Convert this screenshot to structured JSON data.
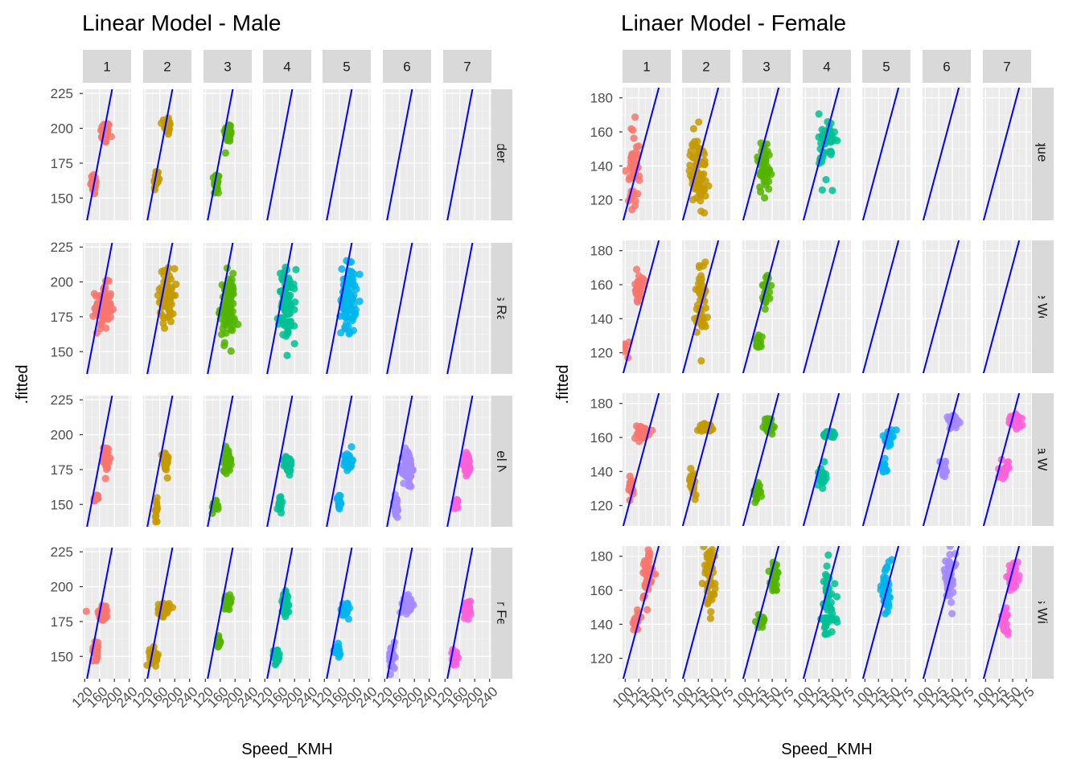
{
  "chart_data": [
    {
      "type": "scatter",
      "title": "Linear Model - Male",
      "xlabel": "Speed_KMH",
      "ylabel": ".fitted",
      "grid": "on",
      "legend": "none",
      "facet_columns": [
        "1",
        "2",
        "3",
        "4",
        "5",
        "6",
        "7"
      ],
      "facet_rows": [
        "Alexander Zverev",
        "Milos Raonic",
        "Rafael Nadal",
        "Roger Federer"
      ],
      "xlim": [
        115,
        245
      ],
      "ylim": [
        134,
        228
      ],
      "x_ticks": [
        120,
        160,
        200,
        240
      ],
      "x_tick_labels": [
        "120",
        "160",
        "200",
        "240"
      ],
      "y_ticks": [
        150,
        175,
        200,
        225
      ],
      "y_tick_labels": [
        "150",
        "175",
        "200",
        "225"
      ],
      "reference_line": {
        "intercept": -41.5,
        "slope": 1.39,
        "color": "#0000FF"
      },
      "series": [
        {
          "name": "1",
          "color": "#F8766D"
        },
        {
          "name": "2",
          "color": "#C49A00"
        },
        {
          "name": "3",
          "color": "#53B400"
        },
        {
          "name": "4",
          "color": "#00C094"
        },
        {
          "name": "5",
          "color": "#00B6EB"
        },
        {
          "name": "6",
          "color": "#A58AFF"
        },
        {
          "name": "7",
          "color": "#FB61D7"
        }
      ],
      "panels": [
        {
          "row": 0,
          "col": 0,
          "clusters": [
            [
              175,
              197,
              12,
              4,
              45
            ],
            [
              145,
              160,
              9,
              4,
              25
            ]
          ]
        },
        {
          "row": 0,
          "col": 1,
          "clusters": [
            [
              180,
              202,
              8,
              3.5,
              35
            ],
            [
              150,
              163,
              7,
              4,
              25
            ]
          ]
        },
        {
          "row": 0,
          "col": 2,
          "clusters": [
            [
              182,
              197,
              10,
              3.5,
              50
            ],
            [
              150,
              160,
              7,
              4.5,
              22
            ]
          ]
        },
        {
          "row": 1,
          "col": 0,
          "clusters": [
            [
              170,
              182,
              22,
              8,
              80
            ]
          ]
        },
        {
          "row": 1,
          "col": 1,
          "clusters": [
            [
              180,
              190,
              20,
              10,
              70
            ]
          ]
        },
        {
          "row": 1,
          "col": 2,
          "clusters": [
            [
              180,
              182,
              20,
              11,
              90
            ]
          ]
        },
        {
          "row": 1,
          "col": 3,
          "clusters": [
            [
              180,
              183,
              22,
              13,
              90
            ]
          ]
        },
        {
          "row": 1,
          "col": 4,
          "clusters": [
            [
              185,
              188,
              20,
              13,
              90
            ]
          ]
        },
        {
          "row": 2,
          "col": 0,
          "clusters": [
            [
              178,
              184,
              7,
              4,
              40
            ],
            [
              150,
              154,
              5,
              1.5,
              12
            ]
          ]
        },
        {
          "row": 2,
          "col": 1,
          "clusters": [
            [
              175,
              181,
              8,
              4,
              40
            ],
            [
              150,
              145,
              6,
              4.5,
              12
            ]
          ]
        },
        {
          "row": 2,
          "col": 2,
          "clusters": [
            [
              180,
              182,
              10,
              4,
              55
            ],
            [
              145,
              148,
              8,
              2,
              25
            ]
          ]
        },
        {
          "row": 2,
          "col": 3,
          "clusters": [
            [
              182,
              179,
              10,
              3,
              55
            ],
            [
              160,
              150,
              6,
              3,
              15
            ]
          ]
        },
        {
          "row": 2,
          "col": 4,
          "clusters": [
            [
              185,
              181,
              10,
              3,
              55
            ],
            [
              160,
              152,
              7,
              3,
              20
            ]
          ]
        },
        {
          "row": 2,
          "col": 5,
          "clusters": [
            [
              182,
              176,
              12,
              7,
              70
            ],
            [
              150,
              148,
              8,
              4.5,
              30
            ]
          ]
        },
        {
          "row": 2,
          "col": 6,
          "clusters": [
            [
              180,
              179,
              9,
              4,
              55
            ],
            [
              150,
              150,
              7,
              2,
              20
            ]
          ]
        },
        {
          "row": 3,
          "col": 0,
          "clusters": [
            [
              170,
              182,
              12,
              3,
              45
            ],
            [
              150,
              154,
              8,
              3,
              30
            ],
            [
              125,
              182,
              1,
              1,
              1
            ]
          ]
        },
        {
          "row": 3,
          "col": 1,
          "clusters": [
            [
              170,
              184,
              15,
              2.5,
              45
            ],
            [
              145,
              150,
              12,
              3,
              40
            ]
          ]
        },
        {
          "row": 3,
          "col": 2,
          "clusters": [
            [
              180,
              189,
              10,
              2,
              35
            ],
            [
              155,
              160,
              6,
              2,
              20
            ]
          ]
        },
        {
          "row": 3,
          "col": 3,
          "clusters": [
            [
              175,
              187,
              8,
              4,
              45
            ],
            [
              150,
              150,
              10,
              2.5,
              40
            ]
          ]
        },
        {
          "row": 3,
          "col": 4,
          "clusters": [
            [
              175,
              184,
              10,
              2.5,
              45
            ],
            [
              155,
              154,
              8,
              2,
              25
            ]
          ]
        },
        {
          "row": 3,
          "col": 5,
          "clusters": [
            [
              180,
              187,
              12,
              3,
              55
            ],
            [
              140,
              149,
              8,
              4.5,
              40
            ]
          ]
        },
        {
          "row": 3,
          "col": 6,
          "clusters": [
            [
              180,
              184,
              10,
              3,
              55
            ],
            [
              145,
              149,
              8,
              2.5,
              25
            ]
          ]
        }
      ]
    },
    {
      "type": "scatter",
      "title": "Linaer Model - Female",
      "xlabel": "Speed_KMH",
      "ylabel": ".fitted",
      "grid": "on",
      "legend": "none",
      "facet_columns": [
        "1",
        "2",
        "3",
        "4",
        "5",
        "6",
        "7"
      ],
      "facet_rows": [
        "Angelique Kerber",
        "Caroline Wozniacki",
        "Serena Williams",
        "Venus Williams"
      ],
      "xlim": [
        95,
        184
      ],
      "ylim": [
        108,
        186
      ],
      "x_ticks": [
        100,
        125,
        150,
        175
      ],
      "x_tick_labels": [
        "100",
        "125",
        "150",
        "175"
      ],
      "y_ticks": [
        120,
        140,
        160,
        180
      ],
      "y_tick_labels": [
        "120",
        "140",
        "160",
        "180"
      ],
      "reference_line": {
        "intercept": -6.7,
        "slope": 1.19,
        "color": "#0000FF"
      },
      "series": [
        {
          "name": "1",
          "color": "#F8766D"
        },
        {
          "name": "2",
          "color": "#C49A00"
        },
        {
          "name": "3",
          "color": "#53B400"
        },
        {
          "name": "4",
          "color": "#00C094"
        },
        {
          "name": "5",
          "color": "#00B6EB"
        },
        {
          "name": "6",
          "color": "#A58AFF"
        },
        {
          "name": "7",
          "color": "#FB61D7"
        }
      ],
      "panels": [
        {
          "row": 0,
          "col": 0,
          "clusters": [
            [
              115,
              140,
              10,
              12,
              50
            ]
          ]
        },
        {
          "row": 0,
          "col": 1,
          "clusters": [
            [
              125,
              137,
              15,
              10,
              80
            ]
          ]
        },
        {
          "row": 0,
          "col": 2,
          "clusters": [
            [
              135,
              140,
              12,
              8,
              55
            ]
          ]
        },
        {
          "row": 0,
          "col": 3,
          "clusters": [
            [
              140,
              152,
              15,
              10,
              45
            ]
          ]
        },
        {
          "row": 1,
          "col": 0,
          "clusters": [
            [
              125,
              158,
              7,
              4,
              35
            ],
            [
              102,
              123,
              5,
              3,
              8
            ]
          ]
        },
        {
          "row": 1,
          "col": 1,
          "clusters": [
            [
              130,
              150,
              10,
              12,
              50
            ]
          ]
        },
        {
          "row": 1,
          "col": 2,
          "clusters": [
            [
              140,
              158,
              8,
              5,
              25
            ],
            [
              125,
              127,
              5,
              2,
              20
            ]
          ]
        },
        {
          "row": 2,
          "col": 0,
          "clusters": [
            [
              130,
              163,
              14,
              2,
              55
            ],
            [
              110,
              130,
              6,
              3,
              25
            ]
          ]
        },
        {
          "row": 2,
          "col": 1,
          "clusters": [
            [
              140,
              166,
              12,
              1,
              40
            ],
            [
              115,
              134,
              7,
              4,
              20
            ]
          ]
        },
        {
          "row": 2,
          "col": 2,
          "clusters": [
            [
              145,
              167,
              10,
              2.5,
              40
            ],
            [
              122,
              128,
              6,
              3,
              20
            ]
          ]
        },
        {
          "row": 2,
          "col": 3,
          "clusters": [
            [
              145,
              162,
              12,
              1,
              45
            ],
            [
              130,
              137,
              7,
              3,
              20
            ]
          ]
        },
        {
          "row": 2,
          "col": 4,
          "clusters": [
            [
              145,
              160,
              7,
              2,
              30
            ],
            [
              135,
              142,
              5,
              2,
              15
            ]
          ]
        },
        {
          "row": 2,
          "col": 5,
          "clusters": [
            [
              150,
              169,
              12,
              2,
              45
            ],
            [
              135,
              141,
              7,
              3,
              20
            ]
          ]
        },
        {
          "row": 2,
          "col": 6,
          "clusters": [
            [
              155,
              170,
              10,
              2,
              45
            ],
            [
              135,
              141,
              7,
              2.5,
              20
            ]
          ]
        },
        {
          "row": 3,
          "col": 0,
          "clusters": [
            [
              140,
              168,
              10,
              8,
              45
            ],
            [
              120,
              142,
              8,
              3,
              20
            ]
          ]
        },
        {
          "row": 3,
          "col": 1,
          "clusters": [
            [
              145,
              168,
              10,
              10,
              50
            ]
          ]
        },
        {
          "row": 3,
          "col": 2,
          "clusters": [
            [
              155,
              168,
              8,
              4,
              35
            ],
            [
              130,
              142,
              10,
              2,
              20
            ]
          ]
        },
        {
          "row": 3,
          "col": 3,
          "clusters": [
            [
              140,
              150,
              15,
              12,
              60
            ]
          ]
        },
        {
          "row": 3,
          "col": 4,
          "clusters": [
            [
              140,
              160,
              10,
              8,
              45
            ]
          ]
        },
        {
          "row": 3,
          "col": 5,
          "clusters": [
            [
              145,
              168,
              10,
              7,
              45
            ]
          ]
        },
        {
          "row": 3,
          "col": 6,
          "clusters": [
            [
              150,
              168,
              10,
              3,
              45
            ],
            [
              135,
              142,
              8,
              4,
              20
            ]
          ]
        }
      ]
    }
  ]
}
